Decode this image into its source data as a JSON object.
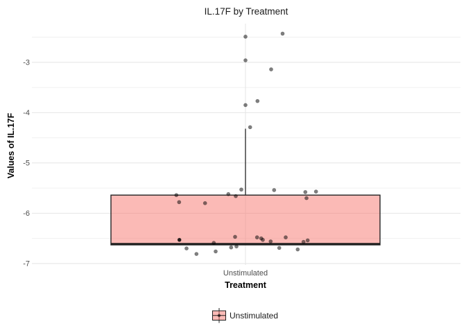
{
  "chart_data": {
    "type": "boxplot",
    "title": "IL.17F by Treatment",
    "xlabel": "Treatment",
    "ylabel": "Values of IL.17F",
    "categories": [
      "Unstimulated"
    ],
    "legend_position": "bottom",
    "legend_label": "Unstimulated",
    "ylim": [
      -7.03,
      -2.23
    ],
    "yticks_major": [
      -3,
      -4,
      -5,
      -6,
      -7
    ],
    "yticks_minor": [
      -2.5,
      -3.5,
      -4.5,
      -5.5,
      -6.5
    ],
    "grid": "on",
    "colors": {
      "box_fill": "#F8766D",
      "box_fill_alpha": 0.5,
      "box_stroke": "#242424",
      "point_fill": "rgba(0,0,0,0.5)",
      "point_fill_dark": "rgba(0,0,0,0.85)",
      "grid_major": "#E4E4E4",
      "grid_minor": "#F0F0F0",
      "tick_text": "#4D4D4D"
    },
    "box": {
      "category": "Unstimulated",
      "q1": -6.63,
      "median": -6.61,
      "q3": -5.64,
      "whisker_upper": -4.32,
      "whisker_lower": -6.63,
      "outliers": [
        -2.49,
        -2.96,
        -3.85
      ]
    },
    "points": [
      {
        "dx": 0,
        "v": -2.49
      },
      {
        "dx": 53.5,
        "v": -2.43
      },
      {
        "dx": 0,
        "v": -2.96
      },
      {
        "dx": 37,
        "v": -3.14
      },
      {
        "dx": 17.3,
        "v": -3.77
      },
      {
        "dx": 0,
        "v": -3.85
      },
      {
        "dx": 6.7,
        "v": -4.29
      },
      {
        "dx": -6,
        "v": -5.53
      },
      {
        "dx": 41.3,
        "v": -5.54
      },
      {
        "dx": 101.7,
        "v": -5.57
      },
      {
        "dx": 86.3,
        "v": -5.58
      },
      {
        "dx": -24.7,
        "v": -5.62
      },
      {
        "dx": -99.7,
        "v": -5.64
      },
      {
        "dx": -14,
        "v": -5.66
      },
      {
        "dx": 88,
        "v": -5.7
      },
      {
        "dx": -95.7,
        "v": -5.78
      },
      {
        "dx": -58.3,
        "v": -5.8
      },
      {
        "dx": -15,
        "v": -6.47
      },
      {
        "dx": 58,
        "v": -6.48
      },
      {
        "dx": 16.7,
        "v": -6.48
      },
      {
        "dx": 22.7,
        "v": -6.5
      },
      {
        "dx": 25,
        "v": -6.53
      },
      {
        "dx": -95.3,
        "v": -6.53,
        "dark": true
      },
      {
        "dx": 89.7,
        "v": -6.54
      },
      {
        "dx": 36.3,
        "v": -6.56
      },
      {
        "dx": 83.7,
        "v": -6.57
      },
      {
        "dx": -45.7,
        "v": -6.59
      },
      {
        "dx": -13,
        "v": -6.66
      },
      {
        "dx": -20.7,
        "v": -6.68
      },
      {
        "dx": 48.7,
        "v": -6.69
      },
      {
        "dx": -85,
        "v": -6.7
      },
      {
        "dx": 75.3,
        "v": -6.72
      },
      {
        "dx": -43,
        "v": -6.76
      },
      {
        "dx": -70.7,
        "v": -6.81
      }
    ]
  }
}
